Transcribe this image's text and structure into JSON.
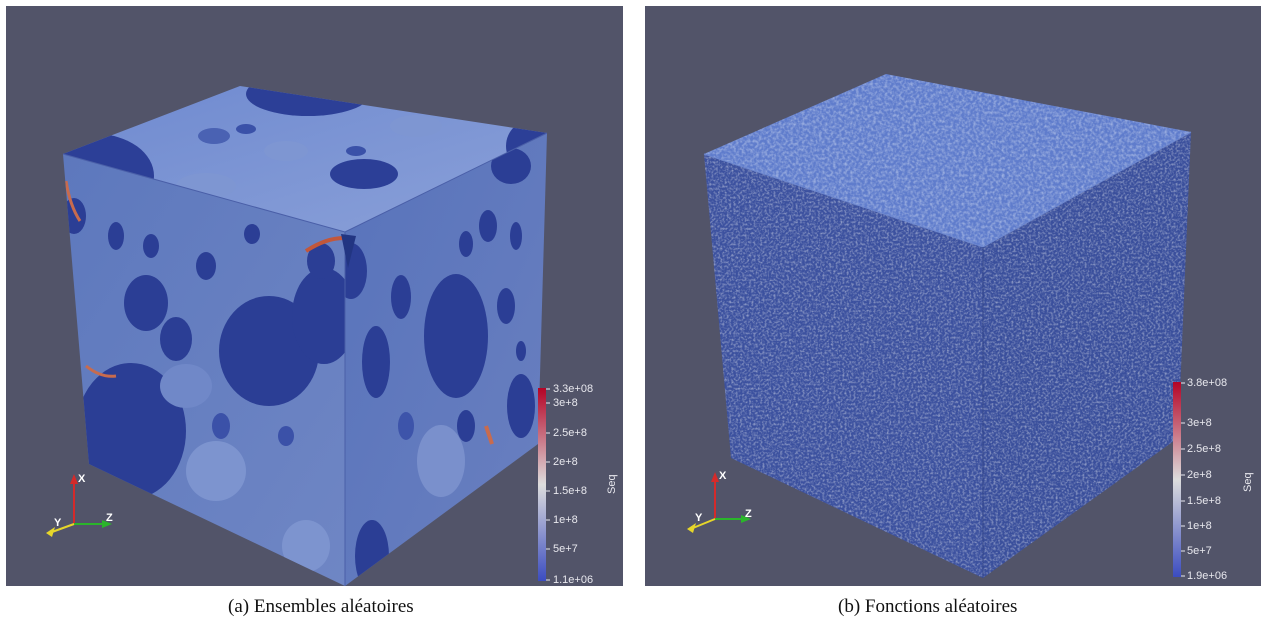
{
  "panels": [
    {
      "caption": "(a)  Ensembles aléatoires",
      "colorbar": {
        "title": "Seq",
        "ticks": [
          "3.3e+08",
          "3e+8",
          "2.5e+8",
          "2e+8",
          "1.5e+8",
          "1e+8",
          "5e+7",
          "1.1e+06"
        ]
      },
      "axes": {
        "x": "X",
        "y": "Y",
        "z": "Z"
      }
    },
    {
      "caption": "(b)  Fonctions aléatoires",
      "colorbar": {
        "title": "Seq",
        "ticks": [
          "3.8e+08",
          "3e+8",
          "2.5e+8",
          "2e+8",
          "1.5e+8",
          "1e+8",
          "5e+7",
          "1.9e+06"
        ]
      },
      "axes": {
        "x": "X",
        "y": "Y",
        "z": "Z"
      }
    }
  ],
  "colors": {
    "background": "#525469",
    "inclusion": "#2a3f95",
    "matrix": "#5a75c2",
    "high": "#b82e2a"
  }
}
